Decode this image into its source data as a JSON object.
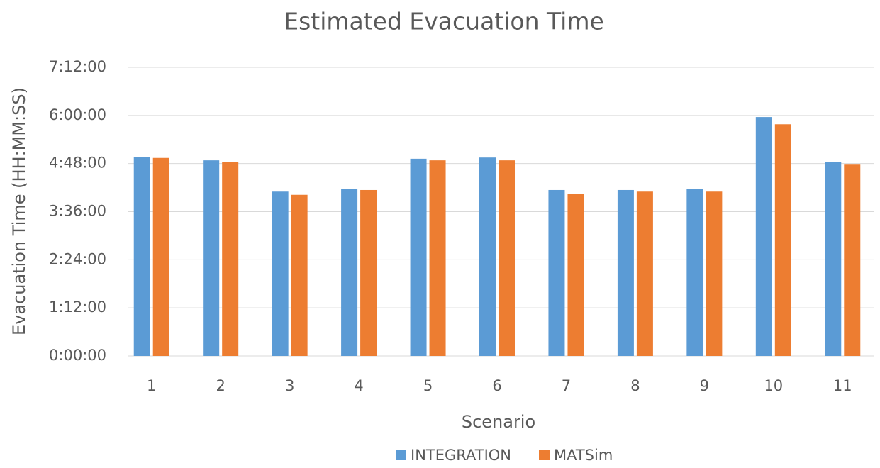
{
  "chart_data": {
    "type": "bar",
    "title": "Estimated Evacuation Time",
    "x_label": "Scenario",
    "y_label": "Evacuation Time (HH:MM:SS)",
    "categories": [
      "1",
      "2",
      "3",
      "4",
      "5",
      "6",
      "7",
      "8",
      "9",
      "10",
      "11"
    ],
    "series": [
      {
        "name": "INTEGRATION",
        "color": "#5b9bd5",
        "values": [
          4.97,
          4.88,
          4.1,
          4.17,
          4.92,
          4.95,
          4.14,
          4.14,
          4.17,
          5.96,
          4.83
        ]
      },
      {
        "name": "MATSim",
        "color": "#ed7d31",
        "values": [
          4.94,
          4.83,
          4.02,
          4.14,
          4.88,
          4.88,
          4.05,
          4.1,
          4.1,
          5.78,
          4.79
        ]
      }
    ],
    "ylim": [
      0,
      7.2
    ],
    "yticks": [
      {
        "value": 0,
        "label": "0:00:00"
      },
      {
        "value": 1.2,
        "label": "1:12:00"
      },
      {
        "value": 2.4,
        "label": "2:24:00"
      },
      {
        "value": 3.6,
        "label": "3:36:00"
      },
      {
        "value": 4.8,
        "label": "4:48:00"
      },
      {
        "value": 6,
        "label": "6:00:00"
      },
      {
        "value": 7.2,
        "label": "7:12:00"
      }
    ],
    "grid": true,
    "legend": "bottom"
  }
}
